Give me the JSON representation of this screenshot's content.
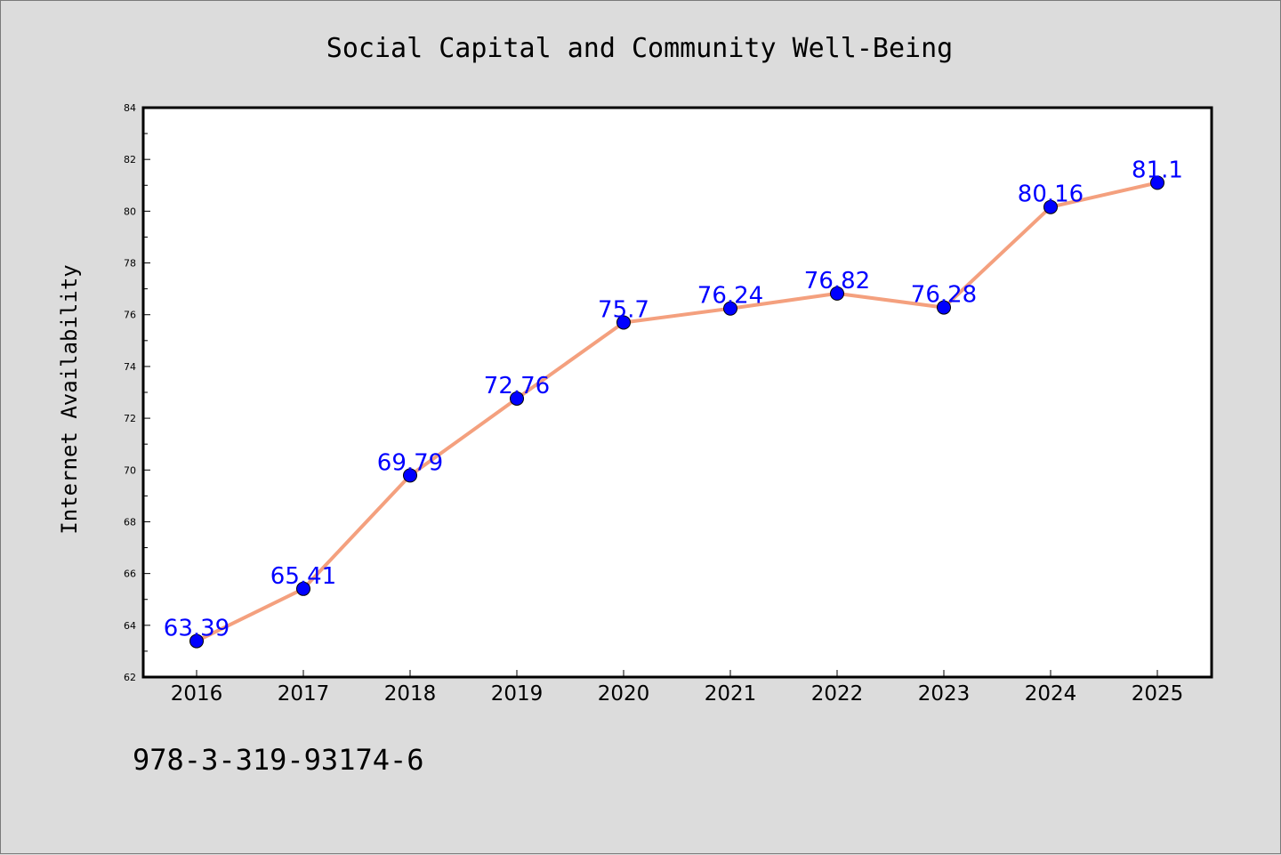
{
  "chart_data": {
    "type": "line",
    "title": "Social Capital and Community Well-Being",
    "xlabel": "",
    "ylabel": "Internet Availability",
    "categories": [
      "2016",
      "2017",
      "2018",
      "2019",
      "2020",
      "2021",
      "2022",
      "2023",
      "2024",
      "2025"
    ],
    "series": [
      {
        "values": [
          63.39,
          65.41,
          69.79,
          72.76,
          75.7,
          76.24,
          76.82,
          76.28,
          80.16,
          81.1
        ],
        "data_labels": [
          "63.39",
          "65.41",
          "69.79",
          "72.76",
          "75.7",
          "76.24",
          "76.82",
          "76.28",
          "80.16",
          "81.1"
        ],
        "line_color": "#f4a07e",
        "marker_color": "#0000ff"
      }
    ],
    "ylim": [
      62,
      84
    ],
    "yticks": [
      "62",
      "64",
      "66",
      "68",
      "70",
      "72",
      "74",
      "76",
      "78",
      "80",
      "82",
      "84"
    ],
    "grid": false,
    "legend": "none",
    "annotation": "978-3-319-93174-6"
  },
  "colors": {
    "background": "#dcdcdc",
    "plot_background": "#ffffff",
    "label_color": "#0000ff"
  }
}
